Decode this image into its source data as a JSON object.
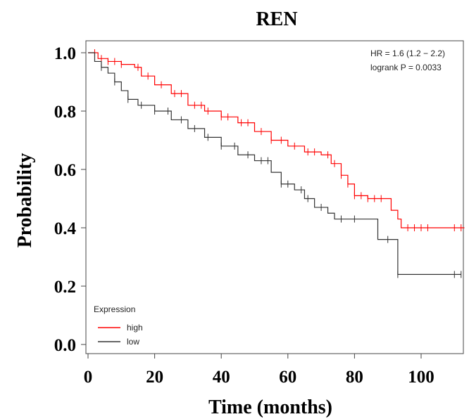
{
  "chart_data": {
    "type": "line",
    "title": "REN",
    "xlabel": "Time (months)",
    "ylabel": "Probability",
    "xlim": [
      0,
      115
    ],
    "ylim": [
      0,
      1.05
    ],
    "x_ticks": [
      0,
      20,
      40,
      60,
      80,
      100
    ],
    "y_ticks": [
      0.0,
      0.2,
      0.4,
      0.6,
      0.8,
      1.0
    ],
    "x_tick_labels": [
      "0",
      "20",
      "40",
      "60",
      "80",
      "100"
    ],
    "y_tick_labels": [
      "0.0",
      "0.2",
      "0.4",
      "0.6",
      "0.8",
      "1.0"
    ],
    "annotations": [
      "HR = 1.6 (1.2 − 2.2)",
      "logrank P = 0.0033"
    ],
    "legend": {
      "title": "Expression",
      "position": "bottom-left"
    },
    "series": [
      {
        "name": "high",
        "color": "#ff0000",
        "x": [
          0,
          3,
          6,
          10,
          14,
          16,
          20,
          25,
          30,
          35,
          40,
          45,
          50,
          55,
          60,
          65,
          70,
          73,
          76,
          78,
          80,
          84,
          88,
          91,
          93,
          94,
          95,
          100,
          105,
          113
        ],
        "y": [
          1.0,
          0.98,
          0.97,
          0.96,
          0.95,
          0.92,
          0.89,
          0.86,
          0.82,
          0.8,
          0.78,
          0.76,
          0.73,
          0.7,
          0.68,
          0.66,
          0.65,
          0.62,
          0.58,
          0.55,
          0.51,
          0.5,
          0.5,
          0.46,
          0.43,
          0.4,
          0.4,
          0.4,
          0.4,
          0.4
        ],
        "censor_x": [
          2,
          4,
          6,
          8,
          10,
          15,
          18,
          22,
          26,
          28,
          32,
          34,
          36,
          40,
          42,
          46,
          48,
          52,
          55,
          58,
          62,
          66,
          68,
          72,
          74,
          76,
          78,
          80,
          82,
          84,
          86,
          88,
          96,
          98,
          100,
          102,
          110,
          112
        ]
      },
      {
        "name": "low",
        "color": "#333333",
        "x": [
          0,
          2,
          4,
          6,
          8,
          10,
          12,
          15,
          20,
          25,
          30,
          35,
          40,
          45,
          50,
          55,
          58,
          62,
          65,
          68,
          72,
          74,
          78,
          82,
          85,
          87,
          92,
          93,
          100,
          108,
          112
        ],
        "y": [
          1.0,
          0.97,
          0.95,
          0.93,
          0.9,
          0.87,
          0.84,
          0.82,
          0.8,
          0.77,
          0.74,
          0.71,
          0.68,
          0.65,
          0.63,
          0.59,
          0.55,
          0.53,
          0.5,
          0.47,
          0.45,
          0.43,
          0.43,
          0.43,
          0.43,
          0.36,
          0.36,
          0.24,
          0.24,
          0.24,
          0.24
        ],
        "censor_x": [
          4,
          8,
          12,
          16,
          20,
          24,
          28,
          32,
          36,
          40,
          44,
          48,
          52,
          54,
          58,
          60,
          64,
          66,
          70,
          76,
          80,
          90,
          93,
          110,
          112
        ]
      }
    ]
  }
}
